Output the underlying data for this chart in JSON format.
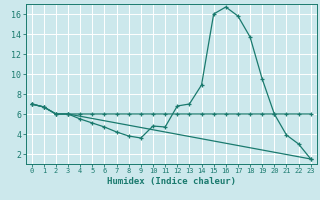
{
  "xlabel": "Humidex (Indice chaleur)",
  "background_color": "#cce8ec",
  "line_color": "#1a7a6e",
  "grid_color": "#ffffff",
  "xlim": [
    -0.5,
    23.5
  ],
  "ylim": [
    1,
    17
  ],
  "yticks": [
    2,
    4,
    6,
    8,
    10,
    12,
    14,
    16
  ],
  "xticks": [
    0,
    1,
    2,
    3,
    4,
    5,
    6,
    7,
    8,
    9,
    10,
    11,
    12,
    13,
    14,
    15,
    16,
    17,
    18,
    19,
    20,
    21,
    22,
    23
  ],
  "line1_x": [
    0,
    1,
    2,
    3,
    4,
    5,
    6,
    7,
    8,
    9,
    10,
    11,
    12,
    13,
    14,
    15,
    16,
    17,
    18,
    19,
    20,
    21,
    22,
    23
  ],
  "line1_y": [
    7.0,
    6.7,
    6.0,
    6.0,
    5.5,
    5.1,
    4.7,
    4.2,
    3.8,
    3.6,
    4.8,
    4.7,
    6.8,
    7.0,
    8.9,
    16.0,
    16.7,
    15.8,
    13.7,
    9.5,
    6.0,
    3.9,
    3.0,
    1.5
  ],
  "line2_x": [
    0,
    1,
    2,
    3,
    4,
    5,
    6,
    7,
    8,
    9,
    10,
    11,
    12,
    13,
    14,
    15,
    16,
    17,
    18,
    19,
    20,
    21,
    22,
    23
  ],
  "line2_y": [
    7.0,
    6.7,
    6.0,
    6.0,
    6.0,
    6.0,
    6.0,
    6.0,
    6.0,
    6.0,
    6.0,
    6.0,
    6.0,
    6.0,
    6.0,
    6.0,
    6.0,
    6.0,
    6.0,
    6.0,
    6.0,
    6.0,
    6.0,
    6.0
  ],
  "line3_x": [
    0,
    1,
    2,
    3,
    23
  ],
  "line3_y": [
    7.0,
    6.7,
    6.0,
    6.0,
    1.5
  ]
}
